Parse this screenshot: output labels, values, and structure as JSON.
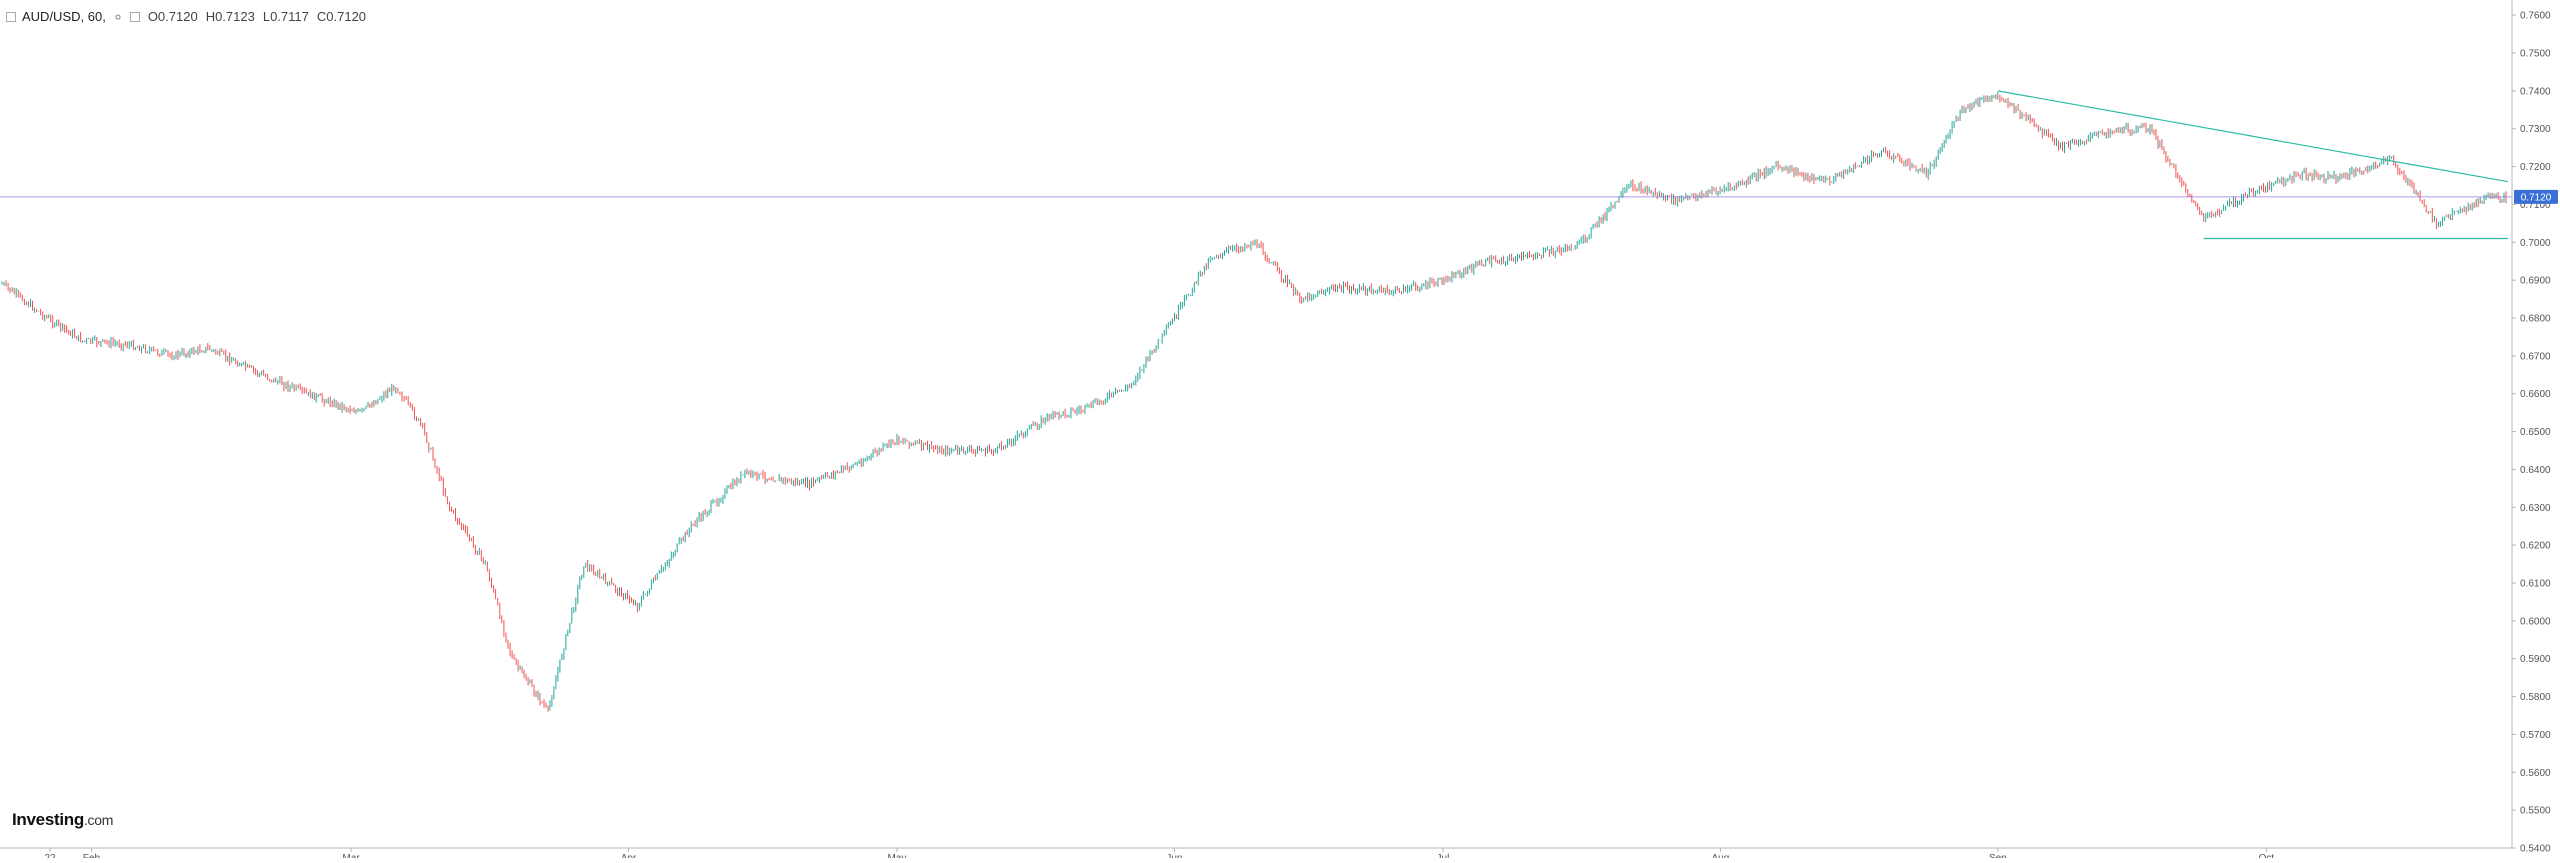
{
  "legend": {
    "symbol": "AUD/USD, 60,",
    "open": "O0.7120",
    "high": "H0.7123",
    "low": "L0.7117",
    "close": "C0.7120",
    "icons": [
      "collapse-icon",
      "visibility-toggle-icon",
      "settings-icon"
    ]
  },
  "brand": {
    "name": "Investing",
    "suffix": ".com"
  },
  "price_tag": {
    "value": "0.7120",
    "color": "#3a6fd8"
  },
  "colors": {
    "up": "#26a69a",
    "down": "#ef5350",
    "trendline": "#2bbba6",
    "crosshair": "#8a6fd8"
  },
  "chart_data": {
    "type": "line",
    "title": "AUD/USD, 60",
    "interval": "60",
    "x_labels": [
      "22",
      "Feb",
      "Mar",
      "Apr",
      "May",
      "Jun",
      "Jul",
      "Aug",
      "Sep",
      "Oct"
    ],
    "y_ticks": [
      0.76,
      0.75,
      0.74,
      0.73,
      0.72,
      0.71,
      0.7,
      0.69,
      0.68,
      0.67,
      0.66,
      0.65,
      0.64,
      0.63,
      0.62,
      0.61,
      0.6,
      0.59,
      0.58,
      0.57,
      0.56,
      0.55,
      0.54
    ],
    "ylim": [
      0.54,
      0.764
    ],
    "xlim": [
      "2020-01-22",
      "2020-10-28"
    ],
    "y_axis_side": "right",
    "grid": false,
    "series": [
      {
        "x": [
          "2020-01-22",
          "2020-01-27",
          "2020-01-31",
          "2020-02-05",
          "2020-02-10",
          "2020-02-14",
          "2020-02-20",
          "2020-02-25",
          "2020-03-02",
          "2020-03-06",
          "2020-03-09",
          "2020-03-12",
          "2020-03-16",
          "2020-03-19",
          "2020-03-23",
          "2020-03-27",
          "2020-04-02",
          "2020-04-08",
          "2020-04-14",
          "2020-04-21",
          "2020-04-27",
          "2020-05-01",
          "2020-05-06",
          "2020-05-12",
          "2020-05-18",
          "2020-05-22",
          "2020-05-27",
          "2020-06-01",
          "2020-06-05",
          "2020-06-10",
          "2020-06-15",
          "2020-06-19",
          "2020-06-25",
          "2020-06-30",
          "2020-07-06",
          "2020-07-10",
          "2020-07-16",
          "2020-07-22",
          "2020-07-27",
          "2020-08-03",
          "2020-08-07",
          "2020-08-13",
          "2020-08-19",
          "2020-08-24",
          "2020-08-28",
          "2020-09-01",
          "2020-09-08",
          "2020-09-14",
          "2020-09-18",
          "2020-09-24",
          "2020-09-30",
          "2020-10-05",
          "2020-10-09",
          "2020-10-15",
          "2020-10-20",
          "2020-10-26",
          "2020-10-28"
        ],
        "values": [
          0.689,
          0.68,
          0.674,
          0.673,
          0.67,
          0.672,
          0.665,
          0.66,
          0.655,
          0.662,
          0.651,
          0.63,
          0.615,
          0.59,
          0.576,
          0.615,
          0.604,
          0.625,
          0.639,
          0.636,
          0.642,
          0.648,
          0.645,
          0.645,
          0.654,
          0.656,
          0.662,
          0.68,
          0.696,
          0.7,
          0.685,
          0.688,
          0.687,
          0.689,
          0.695,
          0.696,
          0.699,
          0.715,
          0.711,
          0.715,
          0.72,
          0.716,
          0.724,
          0.718,
          0.735,
          0.739,
          0.725,
          0.73,
          0.73,
          0.706,
          0.714,
          0.718,
          0.717,
          0.722,
          0.705,
          0.712,
          0.712
        ]
      }
    ],
    "annotations": [
      {
        "type": "trendline",
        "from": [
          "2020-09-01",
          0.74
        ],
        "to": [
          "2020-10-28",
          0.716
        ]
      },
      {
        "type": "horizontal",
        "from": [
          "2020-09-24",
          0.701
        ],
        "to": [
          "2020-10-28",
          0.701
        ]
      },
      {
        "type": "price-line",
        "value": 0.712
      }
    ]
  }
}
